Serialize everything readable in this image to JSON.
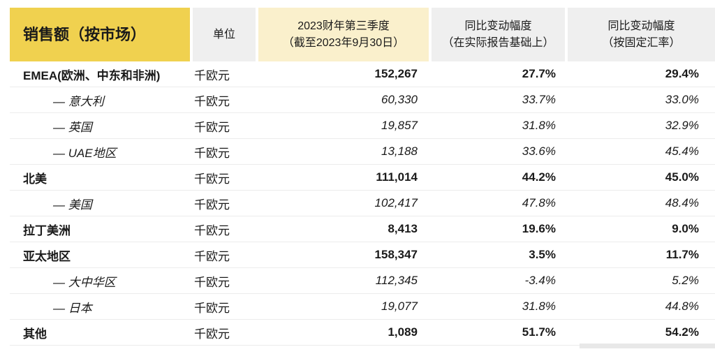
{
  "colors": {
    "accent_yellow": "#F0D14F",
    "light_yellow": "#FAF0CC",
    "header_gray": "#EFEFEF",
    "divider": "#ECECEC",
    "text": "#1A1A1A"
  },
  "header": {
    "title": "销售额（按市场）",
    "unit": "单位",
    "period_line1": "2023财年第三季度",
    "period_line2": "（截至2023年9月30日）",
    "yoy_reported_line1": "同比变动幅度",
    "yoy_reported_line2": "（在实际报告基础上）",
    "yoy_fixed_line1": "同比变动幅度",
    "yoy_fixed_line2": "（按固定汇率）"
  },
  "rows": [
    {
      "label": "EMEA(欧洲、中东和非洲)",
      "unit": "千欧元",
      "value": "152,267",
      "yoy_reported": "27.7%",
      "yoy_fixed": "29.4%"
    },
    {
      "label": "— 意大利",
      "unit": "千欧元",
      "value": "60,330",
      "yoy_reported": "33.7%",
      "yoy_fixed": "33.0%"
    },
    {
      "label": "— 英国",
      "unit": "千欧元",
      "value": "19,857",
      "yoy_reported": "31.8%",
      "yoy_fixed": "32.9%"
    },
    {
      "label": "— UAE地区",
      "unit": "千欧元",
      "value": "13,188",
      "yoy_reported": "33.6%",
      "yoy_fixed": "45.4%"
    },
    {
      "label": "北美",
      "unit": "千欧元",
      "value": "111,014",
      "yoy_reported": "44.2%",
      "yoy_fixed": "45.0%"
    },
    {
      "label": "— 美国",
      "unit": "千欧元",
      "value": "102,417",
      "yoy_reported": "47.8%",
      "yoy_fixed": "48.4%"
    },
    {
      "label": "拉丁美洲",
      "unit": "千欧元",
      "value": "8,413",
      "yoy_reported": "19.6%",
      "yoy_fixed": "9.0%"
    },
    {
      "label": "亚太地区",
      "unit": "千欧元",
      "value": "158,347",
      "yoy_reported": "3.5%",
      "yoy_fixed": "11.7%"
    },
    {
      "label": "— 大中华区",
      "unit": "千欧元",
      "value": "112,345",
      "yoy_reported": "-3.4%",
      "yoy_fixed": "5.2%"
    },
    {
      "label": "— 日本",
      "unit": "千欧元",
      "value": "19,077",
      "yoy_reported": "31.8%",
      "yoy_fixed": "44.8%"
    },
    {
      "label": "其他",
      "unit": "千欧元",
      "value": "1,089",
      "yoy_reported": "51.7%",
      "yoy_fixed": "54.2%"
    }
  ]
}
